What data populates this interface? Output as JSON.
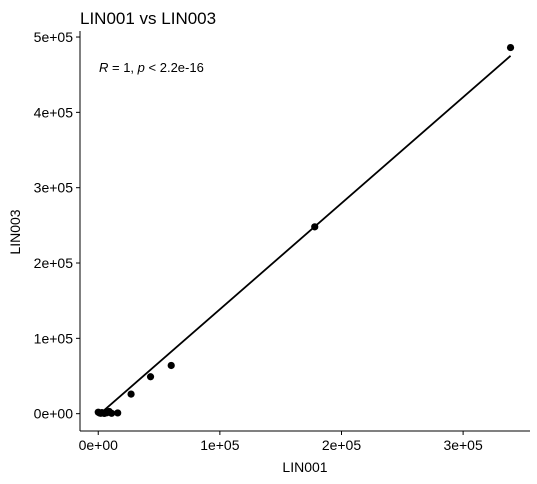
{
  "chart_data": {
    "type": "scatter",
    "title": "LIN001 vs LIN003",
    "xlabel": "LIN001",
    "ylabel": "LIN003",
    "xlim": [
      -15000,
      355000
    ],
    "ylim": [
      -23000,
      508000
    ],
    "x_ticks": [
      0,
      100000,
      200000,
      300000
    ],
    "x_tick_labels": [
      "0e+00",
      "1e+05",
      "2e+05",
      "3e+05"
    ],
    "y_ticks": [
      0,
      100000,
      200000,
      300000,
      400000,
      500000
    ],
    "y_tick_labels": [
      "0e+00",
      "1e+05",
      "2e+05",
      "3e+05",
      "4e+05",
      "5e+05"
    ],
    "grid": false,
    "annotation": {
      "r_symbol": "R",
      "r_text": " = 1, ",
      "p_symbol": "p",
      "p_text": " < 2.2e-16"
    },
    "points": [
      {
        "x": 0,
        "y": 2000
      },
      {
        "x": 1000,
        "y": 1000
      },
      {
        "x": 2000,
        "y": 500
      },
      {
        "x": 3000,
        "y": 1500
      },
      {
        "x": 5000,
        "y": 300
      },
      {
        "x": 7000,
        "y": 1200
      },
      {
        "x": 9000,
        "y": 3000
      },
      {
        "x": 11000,
        "y": 500
      },
      {
        "x": 16000,
        "y": 1000
      },
      {
        "x": 27000,
        "y": 26000
      },
      {
        "x": 43000,
        "y": 49000
      },
      {
        "x": 60000,
        "y": 64000
      },
      {
        "x": 178000,
        "y": 248000
      },
      {
        "x": 339000,
        "y": 486000
      }
    ],
    "fit_line": {
      "x": [
        3000,
        339000
      ],
      "y": [
        2000,
        475000
      ]
    }
  }
}
